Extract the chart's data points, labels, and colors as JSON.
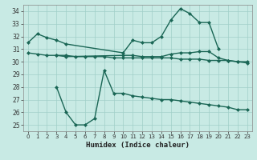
{
  "xlabel": "Humidex (Indice chaleur)",
  "background_color": "#c8eae4",
  "grid_color": "#a0cfc8",
  "line_color": "#1a6655",
  "ylim": [
    24.5,
    34.5
  ],
  "yticks": [
    25,
    26,
    27,
    28,
    29,
    30,
    31,
    32,
    33,
    34
  ],
  "xticks": [
    0,
    1,
    2,
    3,
    4,
    5,
    6,
    7,
    8,
    9,
    10,
    11,
    12,
    13,
    14,
    15,
    16,
    17,
    18,
    19,
    20,
    21,
    22,
    23
  ],
  "line1_x": [
    0,
    1,
    2,
    3,
    4,
    10,
    11,
    12,
    13,
    14,
    15,
    16,
    17,
    18,
    19,
    20
  ],
  "line1_y": [
    31.5,
    32.2,
    31.9,
    31.7,
    31.4,
    30.7,
    31.7,
    31.5,
    31.5,
    32.0,
    33.3,
    34.2,
    33.8,
    33.1,
    33.1,
    31.0
  ],
  "line2_x": [
    0,
    1,
    2,
    3,
    4,
    5,
    6,
    7,
    8,
    9,
    10,
    11,
    12,
    13,
    14,
    15,
    16,
    17,
    18,
    19,
    20,
    21,
    22,
    23
  ],
  "line2_y": [
    30.7,
    30.6,
    30.5,
    30.5,
    30.5,
    30.4,
    30.4,
    30.4,
    30.4,
    30.3,
    30.3,
    30.3,
    30.3,
    30.3,
    30.3,
    30.3,
    30.2,
    30.2,
    30.2,
    30.1,
    30.1,
    30.1,
    30.0,
    30.0
  ],
  "line3_x": [
    3,
    4,
    10,
    11,
    12,
    13,
    14,
    15,
    16,
    17,
    18,
    19,
    20,
    21,
    22,
    23
  ],
  "line3_y": [
    30.5,
    30.4,
    30.5,
    30.5,
    30.4,
    30.4,
    30.4,
    30.6,
    30.7,
    30.7,
    30.8,
    30.8,
    30.3,
    30.1,
    30.0,
    29.9
  ],
  "line4_x": [
    3,
    4,
    5,
    6,
    7,
    8,
    9,
    10,
    11,
    12,
    13,
    14,
    15,
    16,
    17,
    18,
    19,
    20,
    21,
    22,
    23
  ],
  "line4_y": [
    28.0,
    26.0,
    25.0,
    25.0,
    25.5,
    29.3,
    27.5,
    27.5,
    27.3,
    27.2,
    27.1,
    27.0,
    27.0,
    26.9,
    26.8,
    26.7,
    26.6,
    26.5,
    26.4,
    26.2,
    26.2
  ]
}
